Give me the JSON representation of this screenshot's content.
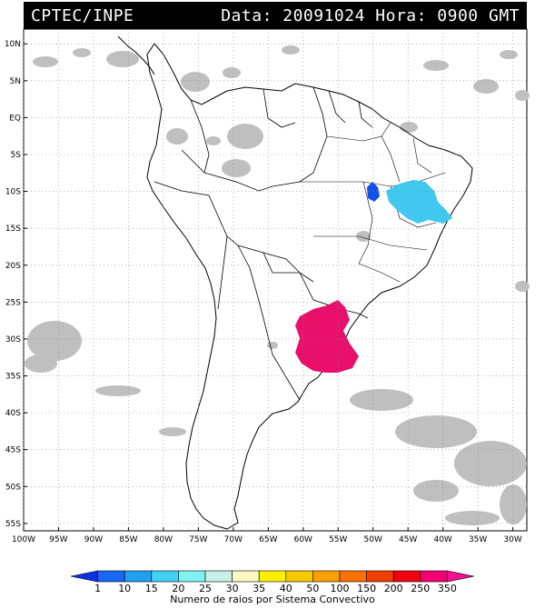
{
  "header": {
    "source": "CPTEC/INPE",
    "datetime": "Data: 20091024 Hora: 0900 GMT"
  },
  "map": {
    "lat_labels": [
      "10N",
      "5N",
      "EQ",
      "5S",
      "10S",
      "15S",
      "20S",
      "25S",
      "30S",
      "35S",
      "40S",
      "45S",
      "50S",
      "55S"
    ],
    "lon_labels": [
      "100W",
      "95W",
      "90W",
      "85W",
      "80W",
      "75W",
      "70W",
      "65W",
      "60W",
      "55W",
      "50W",
      "45W",
      "40W",
      "35W",
      "30W"
    ],
    "lat_range": [
      -56,
      12
    ],
    "lon_range": [
      -100,
      -28
    ],
    "grid": "dotted",
    "colors": {
      "land_outline": "#000000",
      "clouds": "#bdbdbd",
      "grid": "#888888"
    }
  },
  "colorbar": {
    "labels": [
      "1",
      "10",
      "15",
      "20",
      "25",
      "30",
      "35",
      "40",
      "50",
      "100",
      "150",
      "200",
      "250",
      "350"
    ],
    "colors": [
      "#1030e8",
      "#1868f0",
      "#20a0f0",
      "#40d0f0",
      "#80f0f0",
      "#c8f0e8",
      "#f8f8c0",
      "#f8f000",
      "#f8c800",
      "#f8a000",
      "#f87000",
      "#f04000",
      "#f00010",
      "#f00070",
      "#f01090"
    ],
    "title": "Numero de raios por Sistema Convectivo"
  }
}
